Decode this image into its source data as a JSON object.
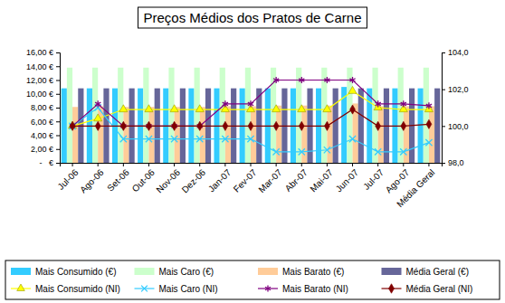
{
  "chart_data": {
    "type": "bar",
    "title": "Preços Médios dos Pratos de Carne",
    "categories": [
      "Jul-06",
      "Ago-06",
      "Set-06",
      "Out-06",
      "Nov-06",
      "Dez-06",
      "Jan-07",
      "Fev-07",
      "Mar-07",
      "Abr-07",
      "Mai-07",
      "Jun-07",
      "Jul-07",
      "Ago-07",
      "Média Geral"
    ],
    "ylim": [
      0,
      16
    ],
    "yticks": [
      {
        "value": 0,
        "label": "-   €"
      },
      {
        "value": 2,
        "label": "2,00 €"
      },
      {
        "value": 4,
        "label": "4,00 €"
      },
      {
        "value": 6,
        "label": "6,00 €"
      },
      {
        "value": 8,
        "label": "8,00 €"
      },
      {
        "value": 10,
        "label": "10,00 €"
      },
      {
        "value": 12,
        "label": "12,00 €"
      },
      {
        "value": 14,
        "label": "14,00 €"
      },
      {
        "value": 16,
        "label": "16,00 €"
      }
    ],
    "y2lim": [
      98,
      104
    ],
    "y2ticks": [
      {
        "value": 98,
        "label": "98,0"
      },
      {
        "value": 100,
        "label": "100,0"
      },
      {
        "value": 102,
        "label": "102,0"
      },
      {
        "value": 104,
        "label": "104,0"
      }
    ],
    "grid": false,
    "legend": "bottom",
    "series": [
      {
        "name": "Mais Consumido (€)",
        "type": "bar",
        "color": "#33ccff",
        "values": [
          10.8,
          10.8,
          10.8,
          10.8,
          10.8,
          10.8,
          10.8,
          10.8,
          10.8,
          10.8,
          10.8,
          11.0,
          10.8,
          10.8,
          10.8
        ]
      },
      {
        "name": "Mais Caro (€)",
        "type": "bar",
        "color": "#ccffcc",
        "values": [
          13.8,
          13.8,
          13.8,
          13.8,
          13.8,
          13.8,
          13.8,
          13.8,
          13.8,
          13.8,
          13.8,
          13.8,
          13.8,
          13.8,
          13.8
        ]
      },
      {
        "name": "Mais Barato (€)",
        "type": "bar",
        "color": "#ffcc99",
        "values": [
          8.1,
          8.2,
          8.1,
          8.1,
          8.1,
          8.1,
          8.2,
          8.2,
          8.3,
          8.3,
          8.3,
          8.6,
          8.2,
          8.2,
          8.2
        ]
      },
      {
        "name": "Média Geral (€)",
        "type": "bar",
        "color": "#666699",
        "values": [
          10.8,
          10.8,
          10.8,
          10.8,
          10.8,
          10.8,
          10.8,
          10.8,
          10.8,
          10.8,
          10.8,
          10.8,
          10.8,
          10.8,
          10.8
        ]
      },
      {
        "name": "Mais Consumido (NI)",
        "type": "line",
        "axis": "y2",
        "color": "#ffff00",
        "marker": "triangle",
        "values": [
          100.0,
          100.4,
          100.9,
          100.9,
          100.9,
          100.9,
          100.9,
          100.9,
          100.9,
          100.9,
          100.9,
          101.9,
          101.0,
          100.9,
          100.9
        ]
      },
      {
        "name": "Mais Caro (NI)",
        "type": "line",
        "axis": "y2",
        "color": "#33ccff",
        "marker": "x",
        "values": [
          100.0,
          101.0,
          99.3,
          99.3,
          99.3,
          99.3,
          99.3,
          99.3,
          98.6,
          98.6,
          98.7,
          99.3,
          98.6,
          98.6,
          99.1
        ]
      },
      {
        "name": "Mais Barato (NI)",
        "type": "line",
        "axis": "y2",
        "color": "#800080",
        "marker": "star",
        "values": [
          100.0,
          101.2,
          100.0,
          100.0,
          100.0,
          100.0,
          101.2,
          101.2,
          102.5,
          102.5,
          102.5,
          102.5,
          101.2,
          101.2,
          101.1
        ]
      },
      {
        "name": "Média Geral (NI)",
        "type": "line",
        "axis": "y2",
        "color": "#800000",
        "marker": "diamond",
        "values": [
          100.0,
          100.0,
          100.0,
          100.0,
          100.0,
          100.0,
          100.0,
          100.0,
          100.0,
          100.0,
          100.0,
          100.9,
          100.0,
          100.0,
          100.1
        ]
      }
    ]
  }
}
